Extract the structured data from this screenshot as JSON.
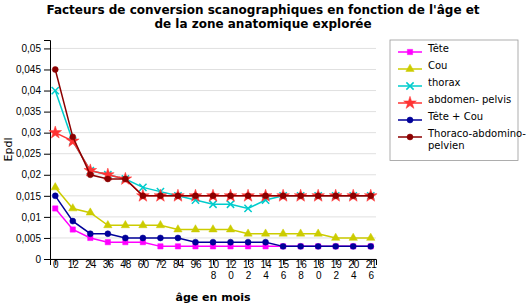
{
  "chart_data": {
    "type": "line",
    "title": "Facteurs de conversion scanographiques en fonction de l'âge et\nde la zone anatomique explorée",
    "x_label": "âge en mois",
    "y_label": "Epdl",
    "categories": [
      "0",
      "12",
      "24",
      "36",
      "48",
      "60",
      "72",
      "84",
      "96",
      "10\n8",
      "12\n0",
      "13\n2",
      "14\n4",
      "15\n6",
      "16\n8",
      "18\n0",
      "19\n2",
      "20\n4",
      "21\n6"
    ],
    "ylim": [
      0,
      0.052
    ],
    "yticks": [
      0,
      {
        "value": 0.005,
        "label": "0,005"
      },
      {
        "value": 0.01,
        "label": "0,01"
      },
      {
        "value": 0.015,
        "label": "0,015"
      },
      {
        "value": 0.02,
        "label": "0,02"
      },
      {
        "value": 0.025,
        "label": "0,025"
      },
      {
        "value": 0.03,
        "label": "0,03"
      },
      {
        "value": 0.035,
        "label": "0,035"
      },
      {
        "value": 0.04,
        "label": "0,04"
      },
      {
        "value": 0.045,
        "label": "0,045"
      },
      {
        "value": 0.05,
        "label": "0,05"
      }
    ],
    "grid": true,
    "legend": "right",
    "series": [
      {
        "name": "Tête",
        "color": "#FF00FF",
        "marker": "square",
        "values": [
          0.012,
          0.007,
          0.005,
          0.004,
          0.004,
          0.004,
          0.003,
          0.003,
          0.003,
          0.003,
          0.003,
          0.003,
          0.003,
          0.003,
          0.003,
          0.003,
          0.003,
          0.003,
          0.003
        ]
      },
      {
        "name": "Cou",
        "color": "#CCCC00",
        "marker": "triangle",
        "values": [
          0.017,
          0.012,
          0.011,
          0.008,
          0.008,
          0.008,
          0.008,
          0.007,
          0.007,
          0.007,
          0.007,
          0.006,
          0.006,
          0.006,
          0.006,
          0.006,
          0.005,
          0.005,
          0.005
        ]
      },
      {
        "name": "thorax",
        "color": "#00CCCC",
        "marker": "x",
        "values": [
          0.04,
          0.028,
          0.021,
          0.02,
          0.019,
          0.017,
          0.016,
          0.015,
          0.014,
          0.013,
          0.013,
          0.012,
          0.014,
          0.015,
          0.015,
          0.015,
          0.015,
          0.015,
          0.015
        ]
      },
      {
        "name": "abdomen- pelvis",
        "color": "#FF3333",
        "marker": "star",
        "values": [
          0.03,
          0.028,
          0.021,
          0.02,
          0.019,
          0.015,
          0.015,
          0.015,
          0.015,
          0.015,
          0.015,
          0.015,
          0.015,
          0.015,
          0.015,
          0.015,
          0.015,
          0.015,
          0.015
        ]
      },
      {
        "name": "Tête + Cou",
        "color": "#000099",
        "marker": "circle",
        "values": [
          0.015,
          0.009,
          0.006,
          0.006,
          0.005,
          0.005,
          0.005,
          0.005,
          0.004,
          0.004,
          0.004,
          0.004,
          0.004,
          0.003,
          0.003,
          0.003,
          0.003,
          0.003,
          0.003
        ]
      },
      {
        "name": "Thoraco-abdomino-\npelvien",
        "color": "#8B0000",
        "marker": "circle",
        "values": [
          0.045,
          0.029,
          0.02,
          0.019,
          0.019,
          0.015,
          0.015,
          0.015,
          0.015,
          0.015,
          0.015,
          0.015,
          0.015,
          0.015,
          0.015,
          0.015,
          0.015,
          0.015,
          0.015
        ]
      }
    ]
  }
}
